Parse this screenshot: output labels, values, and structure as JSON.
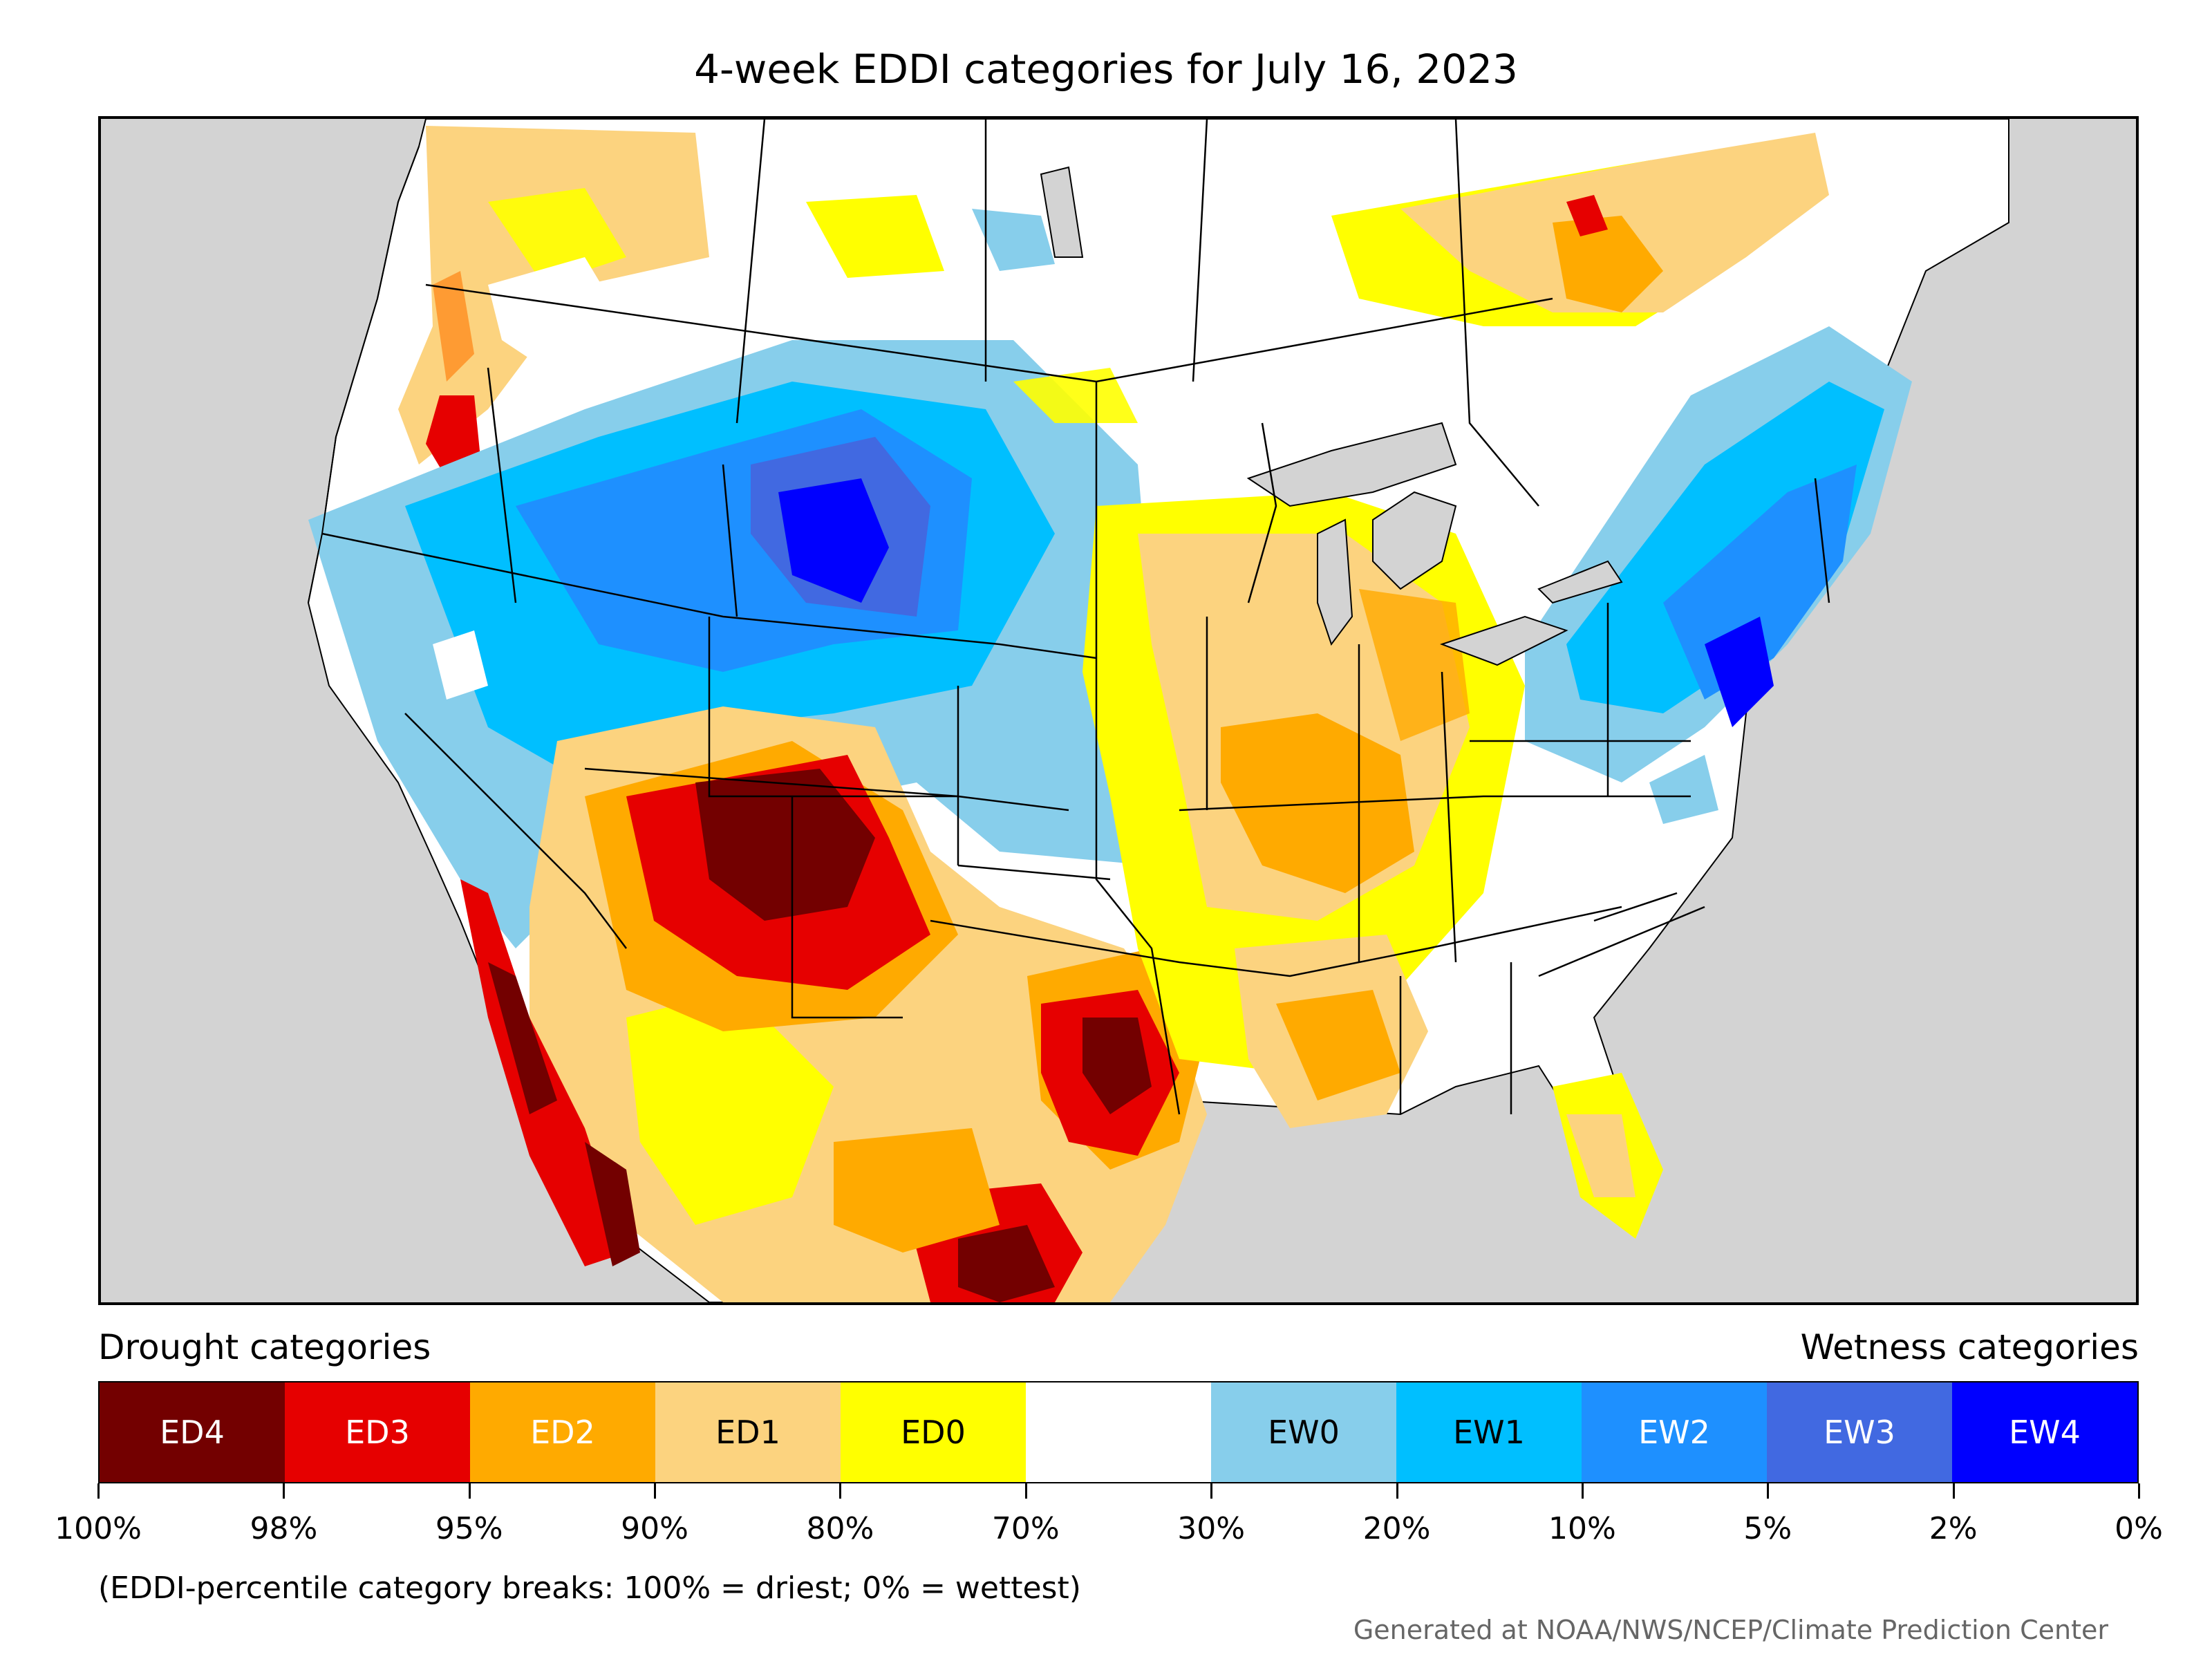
{
  "title": "4-week EDDI categories for July 16, 2023",
  "legend": {
    "left_heading": "Drought categories",
    "right_heading": "Wetness categories",
    "categories": [
      {
        "label": "ED4",
        "color": "#730000",
        "text_color": "#ffffff"
      },
      {
        "label": "ED3",
        "color": "#e60000",
        "text_color": "#ffffff"
      },
      {
        "label": "ED2",
        "color": "#ffaa00",
        "text_color": "#ffffff"
      },
      {
        "label": "ED1",
        "color": "#fcd37f",
        "text_color": "#000000"
      },
      {
        "label": "ED0",
        "color": "#ffff00",
        "text_color": "#000000"
      },
      {
        "label": "",
        "color": "#ffffff",
        "text_color": "#000000"
      },
      {
        "label": "EW0",
        "color": "#87ceeb",
        "text_color": "#000000"
      },
      {
        "label": "EW1",
        "color": "#00bfff",
        "text_color": "#000000"
      },
      {
        "label": "EW2",
        "color": "#1e90ff",
        "text_color": "#ffffff"
      },
      {
        "label": "EW3",
        "color": "#4169e1",
        "text_color": "#ffffff"
      },
      {
        "label": "EW4",
        "color": "#0000ff",
        "text_color": "#ffffff"
      }
    ],
    "tick_labels": [
      "100%",
      "98%",
      "95%",
      "90%",
      "80%",
      "70%",
      "30%",
      "20%",
      "10%",
      "5%",
      "2%",
      "0%"
    ]
  },
  "note": "(EDDI-percentile category breaks: 100% = driest; 0% = wettest)",
  "credit": "Generated at NOAA/NWS/NCEP/Climate Prediction Center",
  "map": {
    "ocean_color": "#d3d3d3",
    "land_color": "#ffffff",
    "border_color": "#000000"
  }
}
